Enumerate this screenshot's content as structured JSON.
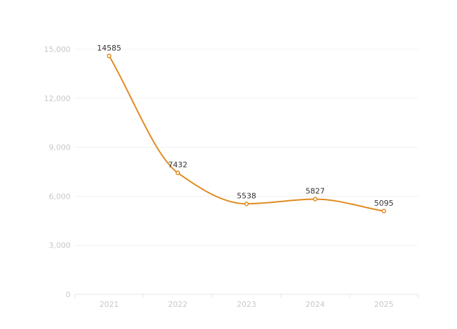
{
  "chart_data": {
    "type": "line",
    "smooth": true,
    "x": [
      "2021",
      "2022",
      "2023",
      "2024",
      "2025"
    ],
    "series": [
      {
        "values": [
          14585,
          7432,
          5538,
          5827,
          5095
        ]
      }
    ],
    "ylim": [
      0,
      15000
    ],
    "yticks": [
      0,
      3000,
      6000,
      9000,
      12000,
      15000
    ],
    "ytick_labels": [
      "0",
      "3,000",
      "6,000",
      "9,000",
      "12,000",
      "15,000"
    ],
    "grid": true,
    "line_color": "#e08a1e",
    "point_fill": "#ffffff",
    "title": "",
    "xlabel": "",
    "ylabel": ""
  }
}
